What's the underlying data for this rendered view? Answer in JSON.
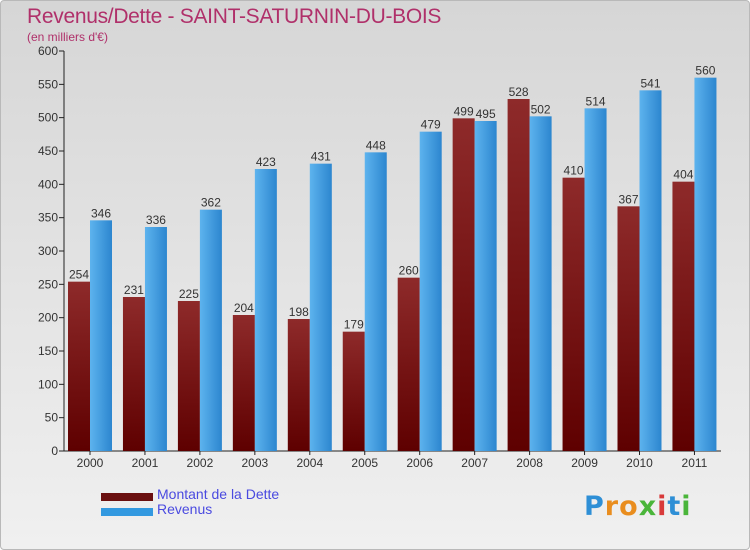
{
  "header": {
    "title": "Revenus/Dette - SAINT-SATURNIN-DU-BOIS",
    "subtitle": "(en milliers d'€)"
  },
  "legend": {
    "debt_label": "Montant de la Dette",
    "revenue_label": "Revenus"
  },
  "brand": {
    "letters": [
      "P",
      "r",
      "o",
      "x",
      "i",
      "t",
      "i"
    ],
    "colors": [
      "#2e8fd6",
      "#e98d1e",
      "#e98d1e",
      "#4ab53a",
      "#d83a3a",
      "#2e8fd6",
      "#4ab53a"
    ]
  },
  "colors": {
    "debt": "#7a1515",
    "revenue": "#3399e0",
    "title": "#b0306a"
  },
  "chart_data": {
    "type": "bar",
    "title": "Revenus/Dette - SAINT-SATURNIN-DU-BOIS",
    "ylabel": "(en milliers d'€)",
    "xlabel": "",
    "ylim": [
      0,
      600
    ],
    "yticks": [
      0,
      50,
      100,
      150,
      200,
      250,
      300,
      350,
      400,
      450,
      500,
      550,
      600
    ],
    "grid": false,
    "legend_position": "bottom-left",
    "categories": [
      "2000",
      "2001",
      "2002",
      "2003",
      "2004",
      "2005",
      "2006",
      "2007",
      "2008",
      "2009",
      "2010",
      "2011"
    ],
    "series": [
      {
        "name": "Montant de la Dette",
        "values": [
          254,
          231,
          225,
          204,
          198,
          179,
          260,
          499,
          528,
          410,
          367,
          404
        ]
      },
      {
        "name": "Revenus",
        "values": [
          346,
          336,
          362,
          423,
          431,
          448,
          479,
          495,
          502,
          514,
          541,
          560
        ]
      }
    ]
  }
}
